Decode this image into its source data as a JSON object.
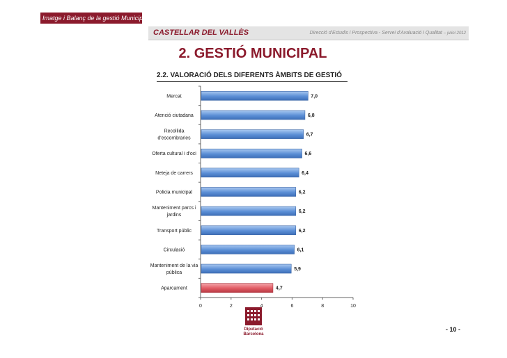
{
  "header": {
    "side_tag": "Imatge i Balanç de la gestió Municipal",
    "municipality": "CASTELLAR DEL VALLÈS",
    "department": "Direcció d'Estudis i Prospectiva - Servei d'Avaluació i Qualitat",
    "date": "– juliol 2012"
  },
  "page": {
    "title": "2. GESTIÓ MUNICIPAL",
    "subtitle": "2.2. VALORACIÓ DELS DIFERENTS ÀMBITS DE GESTIÓ",
    "page_number": "- 10 -"
  },
  "logo": {
    "line1": "Diputació",
    "line2": "Barcelona"
  },
  "colors": {
    "bar": "#5b8fd6",
    "bar_highlight": "#e05a63",
    "accent": "#8b1a2c"
  },
  "chart_data": {
    "type": "bar",
    "orientation": "horizontal",
    "categories": [
      [
        "Mercat"
      ],
      [
        "Atenció ciutadana"
      ],
      [
        "Recollida",
        "d'escombraries"
      ],
      [
        "Oferta cultural i d'oci"
      ],
      [
        "Neteja de carrers"
      ],
      [
        "Policia municipal"
      ],
      [
        "Manteniment parcs i",
        "jardins"
      ],
      [
        "Transport públic"
      ],
      [
        "Circulació"
      ],
      [
        "Manteniment de la via",
        "pública"
      ],
      [
        "Aparcament"
      ]
    ],
    "values": [
      7.0,
      6.8,
      6.7,
      6.6,
      6.4,
      6.2,
      6.2,
      6.2,
      6.1,
      5.9,
      4.7
    ],
    "value_labels": [
      "7,0",
      "6,8",
      "6,7",
      "6,6",
      "6,4",
      "6,2",
      "6,2",
      "6,2",
      "6,1",
      "5,9",
      "4,7"
    ],
    "highlight_index": 10,
    "xlim": [
      0,
      10
    ],
    "xticks": [
      0,
      2,
      4,
      6,
      8,
      10
    ],
    "grid": false,
    "legend": "none"
  }
}
